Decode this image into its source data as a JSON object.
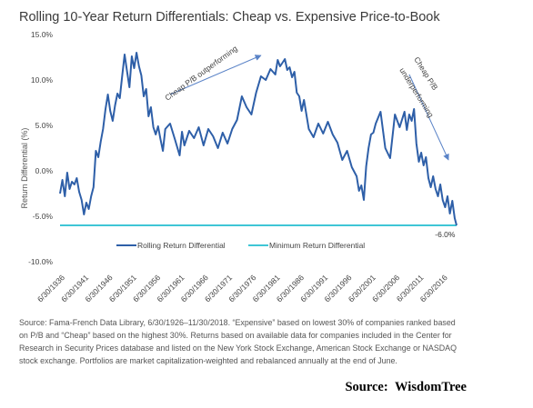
{
  "chart_data": {
    "type": "line",
    "title": "Rolling 10-Year Return Differentials: Cheap vs. Expensive Price-to-Book",
    "xlabel": "",
    "ylabel": "Return Differential (%)",
    "ylim": [
      -10,
      15
    ],
    "y_ticks": [
      "15.0%",
      "10.0%",
      "5.0%",
      "0.0%",
      "-5.0%",
      "-10.0%"
    ],
    "x_ticks": [
      "6/30/1936",
      "6/30/1941",
      "6/30/1946",
      "6/30/1951",
      "6/30/1956",
      "6/30/1961",
      "6/30/1966",
      "6/30/1971",
      "6/30/1976",
      "6/30/1981",
      "6/30/1986",
      "6/30/1991",
      "6/30/1996",
      "6/30/2001",
      "6/30/2006",
      "6/30/2011",
      "6/30/2016"
    ],
    "x_range": [
      1936.0,
      2018.9
    ],
    "grid": false,
    "legend_position": "bottom",
    "series": [
      {
        "name": "Rolling Return Differential",
        "color": "#2e5fa8",
        "x": [
          1936.0,
          1936.5,
          1937.0,
          1937.5,
          1938.0,
          1938.5,
          1939.0,
          1939.5,
          1940.0,
          1940.5,
          1941.0,
          1941.5,
          1942.0,
          1942.5,
          1943.0,
          1943.5,
          1944.0,
          1944.5,
          1945.0,
          1945.5,
          1946.0,
          1946.5,
          1947.0,
          1947.5,
          1948.0,
          1948.5,
          1949.0,
          1949.5,
          1950.0,
          1950.5,
          1951.0,
          1951.5,
          1952.0,
          1952.5,
          1953.0,
          1953.5,
          1954.0,
          1954.5,
          1955.0,
          1955.5,
          1956.0,
          1956.5,
          1957.0,
          1957.5,
          1958.0,
          1959.0,
          1960.0,
          1961.0,
          1961.5,
          1962.0,
          1963.0,
          1964.0,
          1965.0,
          1966.0,
          1967.0,
          1968.0,
          1969.0,
          1970.0,
          1971.0,
          1972.0,
          1973.0,
          1974.0,
          1975.0,
          1976.0,
          1977.0,
          1978.0,
          1979.0,
          1980.0,
          1981.0,
          1981.5,
          1982.0,
          1982.5,
          1983.0,
          1983.5,
          1984.0,
          1984.5,
          1985.0,
          1985.5,
          1986.0,
          1986.5,
          1987.0,
          1988.0,
          1989.0,
          1990.0,
          1991.0,
          1992.0,
          1993.0,
          1994.0,
          1995.0,
          1996.0,
          1997.0,
          1998.0,
          1998.5,
          1999.0,
          1999.5,
          2000.0,
          2000.5,
          2001.0,
          2001.5,
          2002.0,
          2003.0,
          2004.0,
          2005.0,
          2006.0,
          2007.0,
          2008.0,
          2008.5,
          2009.0,
          2009.5,
          2010.0,
          2010.5,
          2011.0,
          2011.5,
          2012.0,
          2012.5,
          2013.0,
          2013.5,
          2014.0,
          2014.5,
          2015.0,
          2015.5,
          2016.0,
          2016.5,
          2017.0,
          2017.5,
          2018.0,
          2018.5,
          2018.9
        ],
        "y": [
          -2.5,
          -1.0,
          -2.8,
          -0.2,
          -2.0,
          -1.2,
          -1.5,
          -0.8,
          -2.3,
          -3.2,
          -4.8,
          -3.5,
          -4.2,
          -2.8,
          -1.8,
          2.2,
          1.5,
          3.2,
          4.6,
          6.8,
          8.4,
          6.6,
          5.5,
          7.2,
          8.5,
          8.0,
          10.5,
          12.8,
          11.0,
          9.2,
          12.6,
          11.3,
          13.0,
          11.5,
          10.5,
          8.2,
          9.0,
          6.0,
          7.0,
          4.8,
          4.0,
          4.9,
          3.5,
          2.2,
          4.6,
          5.2,
          3.5,
          1.7,
          4.3,
          2.8,
          4.4,
          3.6,
          4.8,
          2.8,
          4.6,
          3.8,
          2.5,
          4.2,
          3.0,
          4.6,
          5.6,
          8.2,
          7.0,
          6.2,
          8.6,
          10.4,
          10.0,
          11.2,
          10.6,
          12.2,
          11.5,
          11.9,
          12.3,
          11.1,
          11.4,
          10.3,
          10.9,
          8.6,
          8.2,
          6.6,
          7.8,
          4.6,
          3.7,
          5.2,
          4.1,
          5.4,
          4.0,
          3.1,
          1.2,
          2.2,
          0.4,
          -0.6,
          -2.2,
          -1.6,
          -3.2,
          0.5,
          2.5,
          4.0,
          4.2,
          5.2,
          6.5,
          2.5,
          1.4,
          6.2,
          4.8,
          6.5,
          4.5,
          6.2,
          5.5,
          6.8,
          3.0,
          1.0,
          2.0,
          0.6,
          1.5,
          -0.8,
          -1.8,
          -0.6,
          -2.0,
          -2.8,
          -1.5,
          -3.2,
          -4.0,
          -2.8,
          -4.7,
          -3.3,
          -5.2,
          -6.0
        ]
      },
      {
        "name": "Minimum Return Differential",
        "color": "#3fc6d6",
        "x": [
          1936.0,
          2018.9
        ],
        "y": [
          -6.0,
          -6.0
        ]
      }
    ],
    "annotations": [
      {
        "text": "Cheap P/B outperforming",
        "arrow": true,
        "arrow_from": [
          1959,
          8.4
        ],
        "arrow_to": [
          1978,
          12.7
        ]
      },
      {
        "text": "Cheap P/B",
        "arrow": true,
        "arrow_from": [
          2009.0,
          10.6
        ],
        "arrow_to": [
          2017.2,
          1.2
        ]
      },
      {
        "text": "underperforming"
      },
      {
        "text": "-6.0%",
        "point": [
          2016.5,
          -6.0
        ]
      }
    ]
  },
  "source_note": "Source: Fama-French Data Library, 6/30/1926–11/30/2018. “Expensive” based on lowest 30% of companies ranked based on P/B and “Cheap” based on the highest 30%. Returns based on available data for companies included in the Center for Research in Security Prices database and listed on the New York Stock Exchange, American Stock Exchange or NASDAQ stock exchange. Portfolios are market capitalization-weighted and rebalanced annually at the end of June.",
  "source_credit": "Source:  WisdomTree"
}
